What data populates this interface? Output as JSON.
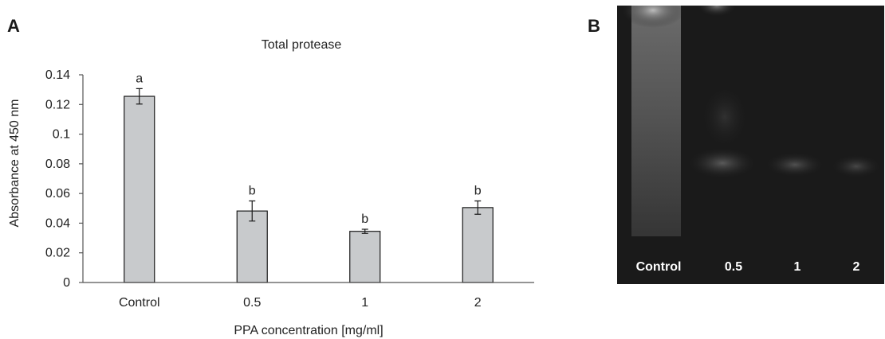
{
  "panels": {
    "a": "A",
    "b": "B"
  },
  "chart_data": {
    "type": "bar",
    "title": "Total protease",
    "xlabel": "PPA concentration [mg/ml]",
    "ylabel": "Absorbance at 450 nm",
    "categories": [
      "Control",
      "0.5",
      "1",
      "2"
    ],
    "values": [
      0.1255,
      0.0482,
      0.0345,
      0.0505
    ],
    "errors": [
      0.0052,
      0.0068,
      0.0014,
      0.0045
    ],
    "significance": [
      "a",
      "b",
      "b",
      "b"
    ],
    "ylim": [
      0,
      0.14
    ],
    "yticks": [
      "0",
      "0.02",
      "0.04",
      "0.06",
      "0.08",
      "0.1",
      "0.12",
      "0.14"
    ],
    "grid": false,
    "bar_color": "#c8cacc"
  },
  "gel": {
    "lanes": [
      "Control",
      "0.5",
      "1",
      "2"
    ]
  }
}
